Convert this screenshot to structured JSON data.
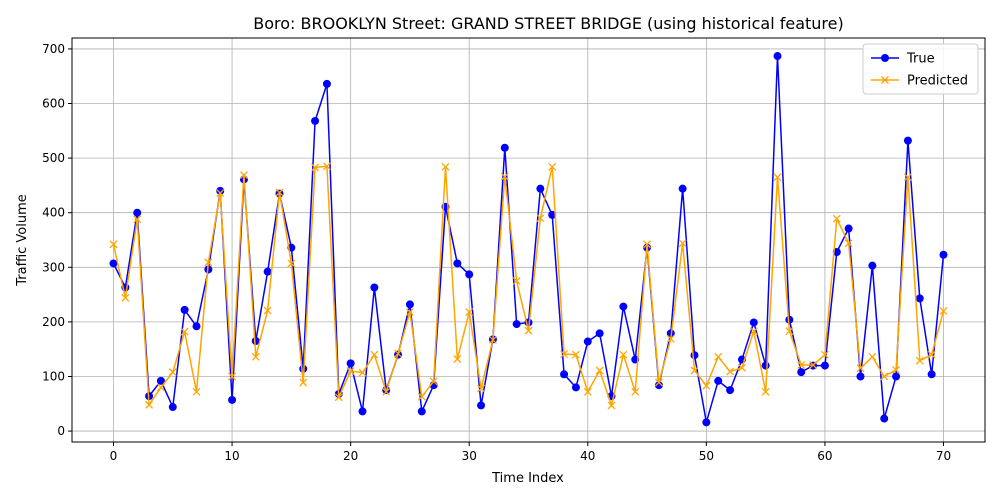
{
  "chart_data": {
    "type": "line",
    "title": "Boro: BROOKLYN Street: GRAND STREET BRIDGE (using historical feature)",
    "xlabel": "Time Index",
    "ylabel": "Traffic Volume",
    "xlim": [
      -3.5,
      73.5
    ],
    "ylim": [
      -20,
      720
    ],
    "xticks": [
      0,
      10,
      20,
      30,
      40,
      50,
      60,
      70
    ],
    "yticks": [
      0,
      100,
      200,
      300,
      400,
      500,
      600,
      700
    ],
    "grid": true,
    "legend_position": "top-right",
    "series": [
      {
        "name": "True",
        "color": "#0000ff",
        "marker": "circle",
        "values": [
          307,
          263,
          400,
          64,
          92,
          44,
          222,
          192,
          296,
          440,
          57,
          461,
          165,
          292,
          435,
          336,
          114,
          568,
          636,
          68,
          124,
          36,
          263,
          75,
          140,
          232,
          36,
          84,
          411,
          307,
          287,
          47,
          168,
          519,
          196,
          199,
          444,
          396,
          104,
          80,
          164,
          179,
          64,
          228,
          131,
          336,
          84,
          179,
          444,
          139,
          16,
          92,
          75,
          131,
          199,
          120,
          687,
          204,
          108,
          120,
          120,
          328,
          371,
          100,
          303,
          23,
          100,
          532,
          243,
          104,
          323
        ]
      },
      {
        "name": "Predicted",
        "color": "#ffa500",
        "marker": "x",
        "values": [
          342,
          244,
          388,
          48,
          80,
          108,
          182,
          72,
          309,
          436,
          100,
          469,
          136,
          221,
          437,
          307,
          89,
          483,
          485,
          62,
          110,
          107,
          140,
          72,
          142,
          218,
          63,
          91,
          484,
          132,
          218,
          78,
          167,
          466,
          275,
          184,
          390,
          484,
          141,
          140,
          72,
          111,
          47,
          140,
          72,
          342,
          89,
          169,
          344,
          111,
          83,
          136,
          109,
          116,
          183,
          72,
          465,
          183,
          121,
          121,
          140,
          389,
          344,
          115,
          136,
          100,
          112,
          465,
          129,
          140,
          220
        ]
      }
    ]
  }
}
